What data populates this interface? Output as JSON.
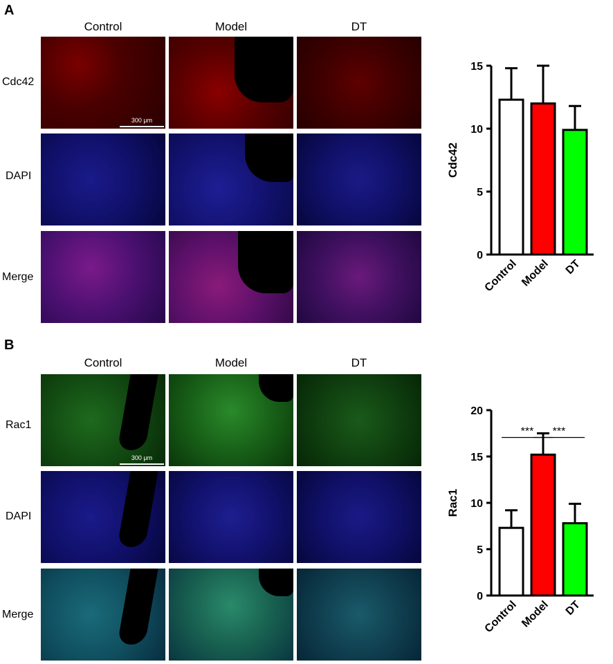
{
  "panels": [
    {
      "letter": "A",
      "columns": [
        "Control",
        "Model",
        "DT"
      ],
      "rows": [
        "Cdc42",
        "DAPI",
        "Merge"
      ],
      "scale_bar": "300 μm",
      "chart_data": {
        "type": "bar",
        "categories": [
          "Control",
          "Model",
          "DT"
        ],
        "values": [
          12.3,
          12.0,
          9.9
        ],
        "errors": [
          2.5,
          3.0,
          1.9
        ],
        "colors": [
          "#ffffff",
          "#ff0000",
          "#00ff00"
        ],
        "ylabel": "Cdc42",
        "ylim": [
          0,
          15
        ],
        "yticks": [
          "0",
          "5",
          "10",
          "15"
        ],
        "significance": []
      }
    },
    {
      "letter": "B",
      "columns": [
        "Control",
        "Model",
        "DT"
      ],
      "rows": [
        "Rac1",
        "DAPI",
        "Merge"
      ],
      "scale_bar": "300 μm",
      "chart_data": {
        "type": "bar",
        "categories": [
          "Control",
          "Model",
          "DT"
        ],
        "values": [
          7.3,
          15.2,
          7.8
        ],
        "errors": [
          1.9,
          2.3,
          2.1
        ],
        "colors": [
          "#ffffff",
          "#ff0000",
          "#00ff00"
        ],
        "ylabel": "Rac1",
        "ylim": [
          0,
          20
        ],
        "yticks": [
          "0",
          "5",
          "10",
          "15",
          "20"
        ],
        "significance": [
          {
            "from": 0,
            "to": 1,
            "label": "***"
          },
          {
            "from": 1,
            "to": 2,
            "label": "***"
          }
        ]
      }
    }
  ]
}
